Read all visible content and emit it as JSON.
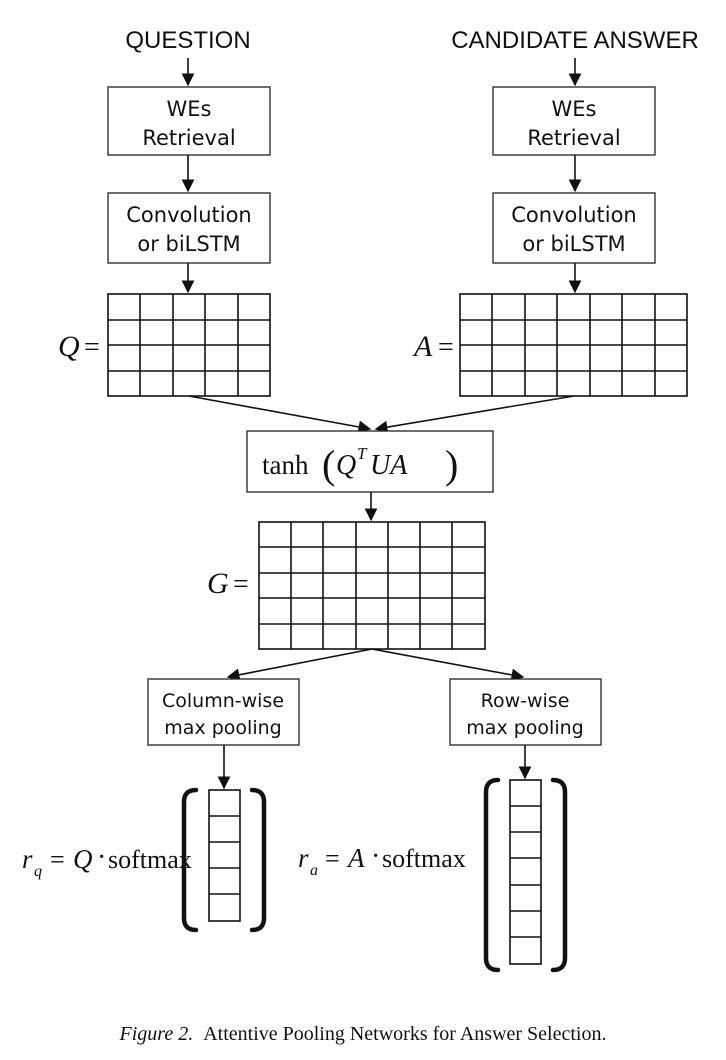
{
  "inputs": {
    "question": "QUESTION",
    "candidate_answer": "CANDIDATE ANSWER"
  },
  "boxes": {
    "wes_line1": "WEs",
    "wes_line2": "Retrieval",
    "conv_line1": "Convolution",
    "conv_line2": "or biLSTM",
    "col_pool_line1": "Column-wise",
    "col_pool_line2": "max pooling",
    "row_pool_line1": "Row-wise",
    "row_pool_line2": "max pooling"
  },
  "math": {
    "q_var": "Q",
    "a_var": "A",
    "g_var": "G",
    "equals": "=",
    "tanh": "tanh",
    "superscript_t": "T",
    "ua": "UA",
    "r": "r",
    "sub_q": "q",
    "sub_a": "a",
    "softmax": "softmax",
    "dot": "·"
  },
  "caption": {
    "label": "Figure 2.",
    "text": "Attentive Pooling Networks for Answer Selection."
  }
}
